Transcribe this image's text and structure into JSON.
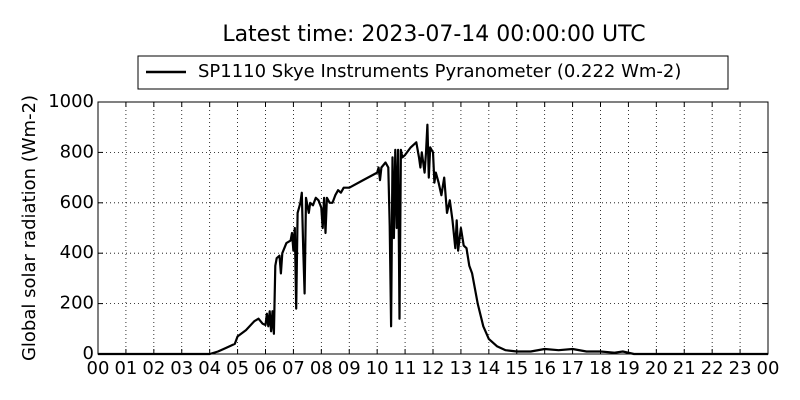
{
  "chart_data": {
    "type": "line",
    "title": "Latest time: 2023-07-14 00:00:00 UTC",
    "ylabel": "Global solar radiation (Wm-2)",
    "xlim": [
      0,
      24
    ],
    "ylim": [
      0,
      1000
    ],
    "yticks": [
      0,
      200,
      400,
      600,
      800,
      1000
    ],
    "xticks": [
      {
        "value": 0,
        "label": "00"
      },
      {
        "value": 1,
        "label": "01"
      },
      {
        "value": 2,
        "label": "02"
      },
      {
        "value": 3,
        "label": "03"
      },
      {
        "value": 4,
        "label": "04"
      },
      {
        "value": 5,
        "label": "05"
      },
      {
        "value": 6,
        "label": "06"
      },
      {
        "value": 7,
        "label": "07"
      },
      {
        "value": 8,
        "label": "08"
      },
      {
        "value": 9,
        "label": "09"
      },
      10,
      11,
      12,
      13,
      14,
      15,
      16,
      17,
      18,
      19,
      20,
      21,
      22,
      23,
      {
        "value": 24,
        "label": "00"
      }
    ],
    "grid": true,
    "legend": "top",
    "x": [
      0,
      1,
      2,
      3,
      4.0,
      4.3,
      4.6,
      4.9,
      5.0,
      5.3,
      5.6,
      5.75,
      5.9,
      6.0,
      6.05,
      6.1,
      6.15,
      6.2,
      6.25,
      6.3,
      6.35,
      6.4,
      6.5,
      6.55,
      6.6,
      6.75,
      6.9,
      6.95,
      7.0,
      7.05,
      7.1,
      7.15,
      7.25,
      7.3,
      7.35,
      7.4,
      7.45,
      7.55,
      7.6,
      7.7,
      7.8,
      7.9,
      8.0,
      8.05,
      8.1,
      8.15,
      8.2,
      8.3,
      8.4,
      8.5,
      8.6,
      8.7,
      8.8,
      9.0,
      9.5,
      10.0,
      10.05,
      10.1,
      10.15,
      10.3,
      10.4,
      10.45,
      10.5,
      10.55,
      10.6,
      10.65,
      10.7,
      10.75,
      10.8,
      10.85,
      10.9,
      11.0,
      11.2,
      11.4,
      11.5,
      11.55,
      11.6,
      11.7,
      11.75,
      11.8,
      11.85,
      11.9,
      12.0,
      12.05,
      12.1,
      12.2,
      12.3,
      12.4,
      12.5,
      12.6,
      12.7,
      12.8,
      12.85,
      12.9,
      13.0,
      13.1,
      13.2,
      13.3,
      13.4,
      13.6,
      13.8,
      14.0,
      14.3,
      14.6,
      15.0,
      15.5,
      16.0,
      16.5,
      17.0,
      17.5,
      18.0,
      18.5,
      18.8,
      19.2,
      24
    ],
    "series": [
      {
        "name": "SP1110 Skye Instruments Pyranometer (0.222 Wm-2)",
        "color": "#000000",
        "values": [
          0,
          0,
          0,
          0,
          0,
          10,
          25,
          40,
          70,
          95,
          130,
          140,
          120,
          115,
          160,
          110,
          170,
          90,
          170,
          80,
          350,
          380,
          390,
          320,
          400,
          440,
          450,
          480,
          410,
          500,
          180,
          560,
          600,
          640,
          420,
          240,
          620,
          560,
          600,
          590,
          620,
          610,
          580,
          500,
          620,
          480,
          620,
          600,
          600,
          630,
          650,
          640,
          660,
          660,
          690,
          720,
          740,
          690,
          740,
          760,
          740,
          510,
          110,
          780,
          460,
          810,
          500,
          810,
          140,
          810,
          780,
          790,
          820,
          840,
          780,
          740,
          800,
          720,
          800,
          910,
          700,
          820,
          800,
          680,
          720,
          680,
          630,
          700,
          560,
          610,
          530,
          420,
          530,
          410,
          500,
          430,
          420,
          350,
          320,
          200,
          110,
          60,
          30,
          15,
          10,
          10,
          20,
          15,
          20,
          10,
          10,
          5,
          10,
          0,
          0
        ]
      }
    ]
  }
}
